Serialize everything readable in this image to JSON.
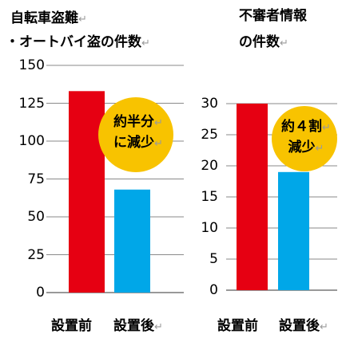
{
  "paragraph_mark": "↵",
  "chart_data": [
    {
      "type": "bar",
      "title_lines": [
        "自転車盗難",
        "・オートバイ盗の件数"
      ],
      "categories": [
        "設置前",
        "設置後"
      ],
      "values": [
        133,
        68
      ],
      "ylim": [
        0,
        150
      ],
      "yticks": [
        "0",
        "25",
        "50",
        "75",
        "100",
        "125",
        "150"
      ],
      "bar_colors": [
        "#e60012",
        "#00a7e8"
      ],
      "grid": true,
      "annotation_lines": [
        "約半分",
        "に減少"
      ],
      "annotation_color": "#f8c300"
    },
    {
      "type": "bar",
      "title_lines": [
        "不審者情報",
        "の件数"
      ],
      "categories": [
        "設置前",
        "設置後"
      ],
      "values": [
        30,
        19
      ],
      "ylim": [
        0,
        30
      ],
      "yticks": [
        "0",
        "5",
        "10",
        "15",
        "20",
        "25",
        "30"
      ],
      "bar_colors": [
        "#e60012",
        "#00a7e8"
      ],
      "grid": true,
      "annotation_lines": [
        "約４割",
        "減少"
      ],
      "annotation_color": "#f8c300"
    }
  ]
}
